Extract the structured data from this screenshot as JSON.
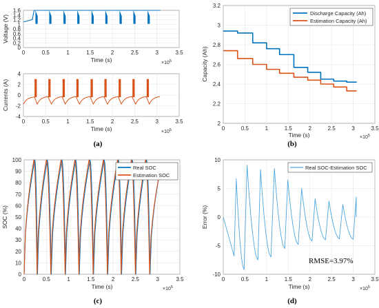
{
  "panels": [
    {
      "id": "a_top",
      "type": "line",
      "xlabel": "Time (s)",
      "ylabel": "Voltage (V)",
      "xlim": [
        0,
        3.5
      ],
      "ylim": [
        0,
        1.6
      ],
      "xticks": [
        "0",
        "0.5",
        "1",
        "1.5",
        "2",
        "2.5",
        "3",
        "3.5"
      ],
      "yticks": [
        "0",
        "0.2",
        "0.4",
        "0.6",
        "0.8",
        "1",
        "1.2",
        "1.4",
        "1.6"
      ],
      "x_exponent": "×10",
      "x_exponent_power": "5",
      "grid": true,
      "series": [
        {
          "color": "#0072BD"
        }
      ]
    },
    {
      "id": "a_bottom",
      "type": "line",
      "xlabel": "Time (s)",
      "ylabel": "Currents (A)",
      "xlim": [
        0,
        3.5
      ],
      "ylim": [
        -4,
        4
      ],
      "xticks": [
        "0",
        "0.5",
        "1",
        "1.5",
        "2",
        "2.5",
        "3",
        "3.5"
      ],
      "yticks": [
        "-4",
        "-2",
        "0",
        "2",
        "4"
      ],
      "x_exponent": "×10",
      "x_exponent_power": "5",
      "grid": true,
      "series": [
        {
          "color": "#D95319"
        }
      ]
    },
    {
      "id": "b",
      "type": "line",
      "xlabel": "Time (s)",
      "ylabel": "Capacity (Ah)",
      "xlim": [
        0,
        3.5
      ],
      "ylim": [
        2.0,
        3.2
      ],
      "xticks": [
        "0",
        "0.5",
        "1",
        "1.5",
        "2",
        "2.5",
        "3",
        "3.5"
      ],
      "yticks": [
        "2",
        "2.2",
        "2.4",
        "2.6",
        "2.8",
        "3",
        "3.2"
      ],
      "x_exponent": "×10",
      "x_exponent_power": "5",
      "grid": true,
      "legend": "top-right",
      "series": [
        {
          "name": "Discharge Capacity (Ah)",
          "color": "#0072BD"
        },
        {
          "name": "Estimation Capacity (Ah)",
          "color": "#D95319"
        }
      ]
    },
    {
      "id": "c",
      "type": "line",
      "xlabel": "Time (s)",
      "ylabel": "SOC (%)",
      "xlim": [
        0,
        3.5
      ],
      "ylim": [
        0,
        100
      ],
      "xticks": [
        "0",
        "0.5",
        "1",
        "1.5",
        "2",
        "2.5",
        "3",
        "3.5"
      ],
      "yticks": [
        "0",
        "10",
        "20",
        "30",
        "40",
        "50",
        "60",
        "70",
        "80",
        "90",
        "100"
      ],
      "x_exponent": "×10",
      "x_exponent_power": "5",
      "grid": true,
      "legend": "top-right",
      "series": [
        {
          "name": "Real SOC",
          "color": "#0072BD"
        },
        {
          "name": "Estimation SOC",
          "color": "#D95319"
        }
      ]
    },
    {
      "id": "d",
      "type": "line",
      "xlabel": "Time (s)",
      "ylabel": "Error (%)",
      "xlim": [
        0,
        3.5
      ],
      "ylim": [
        -10,
        10
      ],
      "xticks": [
        "0",
        "0.5",
        "1",
        "1.5",
        "2",
        "2.5",
        "3",
        "3.5"
      ],
      "yticks": [
        "-10",
        "-5",
        "0",
        "5",
        "10"
      ],
      "x_exponent": "×10",
      "x_exponent_power": "5",
      "grid": true,
      "legend": "top-right",
      "annotation": "RMSE=3.97%",
      "series": [
        {
          "name": "Real SOC-Estimation SOC",
          "color": "#4DA6E0"
        }
      ]
    }
  ],
  "panel_labels": [
    "(a)",
    "(b)",
    "(c)",
    "(d)"
  ],
  "chart_data": [
    {
      "type": "line",
      "xlabel": "Time (s)",
      "ylabel": "Voltage (V)",
      "x_scale": "×10^5",
      "xlim": [
        0,
        3.5
      ],
      "ylim": [
        0,
        1.6
      ],
      "series": [
        {
          "x": [
            0,
            0.2,
            0.25,
            0.27,
            0.32,
            0.35,
            0.5,
            0.55,
            0.58,
            0.63,
            0.66,
            0.82,
            0.87,
            0.9,
            0.95,
            0.98,
            1.13,
            1.18,
            1.21,
            1.26,
            1.29,
            1.45,
            1.5,
            1.53,
            1.58,
            1.61,
            1.76,
            1.81,
            1.84,
            1.89,
            1.92,
            2.08,
            2.13,
            2.16,
            2.21,
            2.24,
            2.39,
            2.44,
            2.47,
            2.52,
            2.55,
            2.71,
            2.76,
            2.79,
            2.84,
            2.87,
            3.02,
            3.05,
            3.08
          ],
          "y": [
            1.1,
            1.2,
            1.6,
            1.6,
            1.6,
            1.6,
            1.6,
            1.6,
            1.6,
            1.6,
            1.6,
            1.6,
            1.6,
            1.6,
            1.6,
            1.6,
            1.6,
            1.6,
            1.6,
            1.6,
            1.6,
            1.6,
            1.6,
            1.6,
            1.6,
            1.6,
            1.6,
            1.6,
            1.6,
            1.6,
            1.6,
            1.6,
            1.6,
            1.6,
            1.6,
            1.6,
            1.6,
            1.6,
            1.6,
            1.6,
            1.6,
            1.6,
            1.6,
            1.6,
            1.6,
            1.6,
            1.6,
            1.6,
            1.6
          ]
        }
      ],
      "note_cycles": {
        "charge_end_times": [
          0.27,
          0.58,
          0.9,
          1.21,
          1.53,
          1.84,
          2.16,
          2.47,
          2.79
        ],
        "discharge_min_v": 1.0
      }
    },
    {
      "type": "line",
      "xlabel": "Time (s)",
      "ylabel": "Currents (A)",
      "x_scale": "×10^5",
      "xlim": [
        0,
        3.5
      ],
      "ylim": [
        -4,
        4
      ],
      "series": [
        {
          "cycle_start_times": [
            0,
            0.31,
            0.63,
            0.94,
            1.26,
            1.57,
            1.89,
            2.2,
            2.52,
            2.83
          ],
          "discharge_current": -1.7,
          "pulse_current": 3.0
        }
      ]
    },
    {
      "type": "line",
      "xlabel": "Time (s)",
      "ylabel": "Capacity (Ah)",
      "x_scale": "×10^5",
      "xlim": [
        0,
        3.5
      ],
      "ylim": [
        2.0,
        3.2
      ],
      "series": [
        {
          "name": "Discharge Capacity (Ah)",
          "x": [
            0,
            0.33,
            0.33,
            0.68,
            0.68,
            1.0,
            1.0,
            1.3,
            1.3,
            1.63,
            1.63,
            1.95,
            1.95,
            2.25,
            2.25,
            2.55,
            2.55,
            2.85,
            2.85,
            3.08
          ],
          "y": [
            2.94,
            2.94,
            2.92,
            2.92,
            2.82,
            2.82,
            2.76,
            2.76,
            2.7,
            2.7,
            2.57,
            2.57,
            2.52,
            2.52,
            2.45,
            2.45,
            2.43,
            2.43,
            2.42,
            2.42
          ]
        },
        {
          "name": "Estimation Capacity (Ah)",
          "x": [
            0,
            0.33,
            0.33,
            0.68,
            0.68,
            1.0,
            1.0,
            1.3,
            1.3,
            1.63,
            1.63,
            1.95,
            1.95,
            2.25,
            2.25,
            2.55,
            2.55,
            2.85,
            2.85,
            3.08
          ],
          "y": [
            2.74,
            2.74,
            2.66,
            2.66,
            2.6,
            2.6,
            2.55,
            2.55,
            2.51,
            2.51,
            2.47,
            2.47,
            2.44,
            2.44,
            2.4,
            2.4,
            2.37,
            2.37,
            2.33,
            2.33
          ]
        }
      ]
    },
    {
      "type": "line",
      "xlabel": "Time (s)",
      "ylabel": "SOC (%)",
      "x_scale": "×10^5",
      "xlim": [
        0,
        3.5
      ],
      "ylim": [
        0,
        100
      ],
      "series": [
        {
          "name": "Real SOC",
          "peak_times": [
            0.24,
            0.52,
            0.85,
            1.16,
            1.48,
            1.8,
            2.12,
            2.43,
            2.75
          ],
          "trough_times": [
            0.3,
            0.61,
            0.93,
            1.24,
            1.56,
            1.88,
            2.19,
            2.51,
            2.83
          ],
          "end_time": 3.08
        },
        {
          "name": "Estimation SOC",
          "peak_times": [
            0.22,
            0.5,
            0.83,
            1.14,
            1.46,
            1.78,
            2.1,
            2.41,
            2.73
          ],
          "trough_times": [
            0.29,
            0.6,
            0.92,
            1.23,
            1.55,
            1.87,
            2.18,
            2.5,
            2.82
          ],
          "end_time": 3.08
        }
      ]
    },
    {
      "type": "line",
      "xlabel": "Time (s)",
      "ylabel": "Error (%)",
      "x_scale": "×10^5",
      "xlim": [
        0,
        3.5
      ],
      "ylim": [
        -10,
        10
      ],
      "annotation": "RMSE=3.97%",
      "series": [
        {
          "name": "Real SOC-Estimation SOC",
          "x": [
            0,
            0.25,
            0.3,
            0.3,
            0.48,
            0.55,
            0.55,
            0.8,
            0.86,
            0.86,
            1.1,
            1.18,
            1.18,
            1.42,
            1.49,
            1.49,
            1.73,
            1.81,
            1.81,
            2.05,
            2.12,
            2.12,
            2.36,
            2.44,
            2.44,
            2.68,
            2.76,
            2.76,
            3.0,
            3.07,
            3.07
          ],
          "y": [
            0,
            -6.8,
            6.7,
            6.7,
            -9.2,
            9.1,
            9.1,
            -7.5,
            8.3,
            8.3,
            -7.0,
            8.5,
            8.5,
            -5.5,
            6.5,
            6.5,
            -4.8,
            5.0,
            5.0,
            -4.2,
            3.2,
            3.2,
            -4.0,
            2.8,
            2.8,
            -3.8,
            2.2,
            2.2,
            -3.9,
            3.5,
            0
          ]
        }
      ]
    }
  ]
}
